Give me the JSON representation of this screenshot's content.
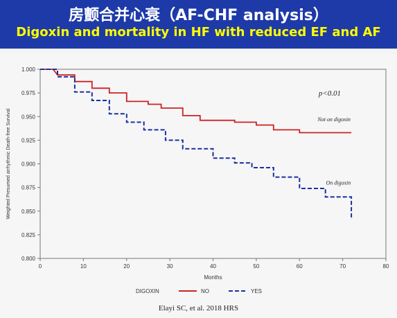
{
  "slide": {
    "title": "房颤合并心衰（AF-CHF analysis）",
    "subtitle": "Digoxin and mortality in HF with reduced EF and AF",
    "citation": "Elayi SC, et al. 2018 HRS",
    "colors": {
      "banner": "#1e3aa8",
      "title": "#ffffff",
      "subtitle": "#ffff00"
    }
  },
  "chart_data": {
    "type": "line",
    "title": "",
    "xlabel": "Months",
    "ylabel": "Weighted Presumed arrhythmic Death-free Survival",
    "xlim": [
      0,
      80
    ],
    "ylim": [
      0.8,
      1.0
    ],
    "x_ticks": [
      "0",
      "10",
      "20",
      "30",
      "40",
      "50",
      "60",
      "70",
      "80"
    ],
    "y_ticks": [
      "0.800",
      "0.825",
      "0.850",
      "0.875",
      "0.900",
      "0.925",
      "0.950",
      "0.975",
      "1.000"
    ],
    "grid": false,
    "legend": {
      "title": "DIGOXIN",
      "position": "bottom",
      "entries": [
        "NO",
        "YES"
      ]
    },
    "annotations": [
      {
        "text": "p<0.01",
        "x": 67,
        "y": 0.972
      },
      {
        "text": "Not on digoxin",
        "x": 68,
        "y": 0.945
      },
      {
        "text": "On digoxin",
        "x": 69,
        "y": 0.878
      }
    ],
    "series": [
      {
        "name": "NO",
        "color": "#cc2222",
        "style": "solid",
        "points": [
          [
            0,
            1.0
          ],
          [
            3,
            1.0
          ],
          [
            4,
            0.994
          ],
          [
            8,
            0.994
          ],
          [
            8,
            0.987
          ],
          [
            12,
            0.987
          ],
          [
            12,
            0.98
          ],
          [
            16,
            0.98
          ],
          [
            16,
            0.975
          ],
          [
            20,
            0.975
          ],
          [
            20,
            0.966
          ],
          [
            25,
            0.966
          ],
          [
            25,
            0.963
          ],
          [
            28,
            0.963
          ],
          [
            28,
            0.959
          ],
          [
            33,
            0.959
          ],
          [
            33,
            0.951
          ],
          [
            37,
            0.951
          ],
          [
            37,
            0.946
          ],
          [
            45,
            0.946
          ],
          [
            45,
            0.944
          ],
          [
            50,
            0.944
          ],
          [
            50,
            0.941
          ],
          [
            54,
            0.941
          ],
          [
            54,
            0.936
          ],
          [
            60,
            0.936
          ],
          [
            60,
            0.933
          ],
          [
            72,
            0.933
          ]
        ]
      },
      {
        "name": "YES",
        "color": "#1a2fa0",
        "style": "dashed",
        "points": [
          [
            0,
            1.0
          ],
          [
            4,
            1.0
          ],
          [
            4,
            0.992
          ],
          [
            8,
            0.992
          ],
          [
            8,
            0.976
          ],
          [
            12,
            0.976
          ],
          [
            12,
            0.967
          ],
          [
            16,
            0.967
          ],
          [
            16,
            0.953
          ],
          [
            20,
            0.953
          ],
          [
            20,
            0.944
          ],
          [
            24,
            0.944
          ],
          [
            24,
            0.936
          ],
          [
            29,
            0.936
          ],
          [
            29,
            0.925
          ],
          [
            33,
            0.925
          ],
          [
            33,
            0.916
          ],
          [
            40,
            0.916
          ],
          [
            40,
            0.906
          ],
          [
            45,
            0.906
          ],
          [
            45,
            0.901
          ],
          [
            49,
            0.901
          ],
          [
            49,
            0.896
          ],
          [
            54,
            0.896
          ],
          [
            54,
            0.886
          ],
          [
            60,
            0.886
          ],
          [
            60,
            0.874
          ],
          [
            66,
            0.874
          ],
          [
            66,
            0.865
          ],
          [
            72,
            0.865
          ],
          [
            72,
            0.841
          ]
        ]
      }
    ]
  }
}
